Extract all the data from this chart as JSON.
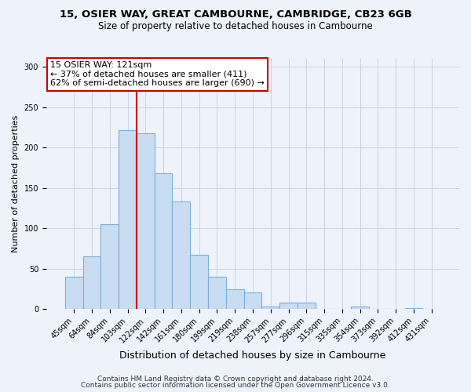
{
  "title1": "15, OSIER WAY, GREAT CAMBOURNE, CAMBRIDGE, CB23 6GB",
  "title2": "Size of property relative to detached houses in Cambourne",
  "xlabel": "Distribution of detached houses by size in Cambourne",
  "ylabel": "Number of detached properties",
  "bar_labels": [
    "45sqm",
    "64sqm",
    "84sqm",
    "103sqm",
    "122sqm",
    "142sqm",
    "161sqm",
    "180sqm",
    "199sqm",
    "219sqm",
    "238sqm",
    "257sqm",
    "277sqm",
    "296sqm",
    "315sqm",
    "335sqm",
    "354sqm",
    "373sqm",
    "392sqm",
    "412sqm",
    "431sqm"
  ],
  "bar_values": [
    40,
    65,
    105,
    222,
    218,
    168,
    133,
    67,
    40,
    24,
    20,
    3,
    8,
    8,
    0,
    0,
    3,
    0,
    0,
    1,
    0
  ],
  "bar_color": "#c9ddf2",
  "bar_edge_color": "#7aaedc",
  "vline_color": "#cc0000",
  "annotation_title": "15 OSIER WAY: 121sqm",
  "annotation_line2": "← 37% of detached houses are smaller (411)",
  "annotation_line3": "62% of semi-detached houses are larger (690) →",
  "annotation_box_facecolor": "white",
  "annotation_box_edgecolor": "#cc0000",
  "ylim_max": 310,
  "yticks": [
    0,
    50,
    100,
    150,
    200,
    250,
    300
  ],
  "footer1": "Contains HM Land Registry data © Crown copyright and database right 2024.",
  "footer2": "Contains public sector information licensed under the Open Government Licence v3.0.",
  "bg_color": "#eef2fb",
  "grid_color": "#c8d4e8",
  "title1_fontsize": 9.5,
  "title2_fontsize": 8.5,
  "ylabel_fontsize": 8,
  "xlabel_fontsize": 9,
  "tick_fontsize": 7,
  "footer_fontsize": 6.5,
  "annot_fontsize": 8
}
